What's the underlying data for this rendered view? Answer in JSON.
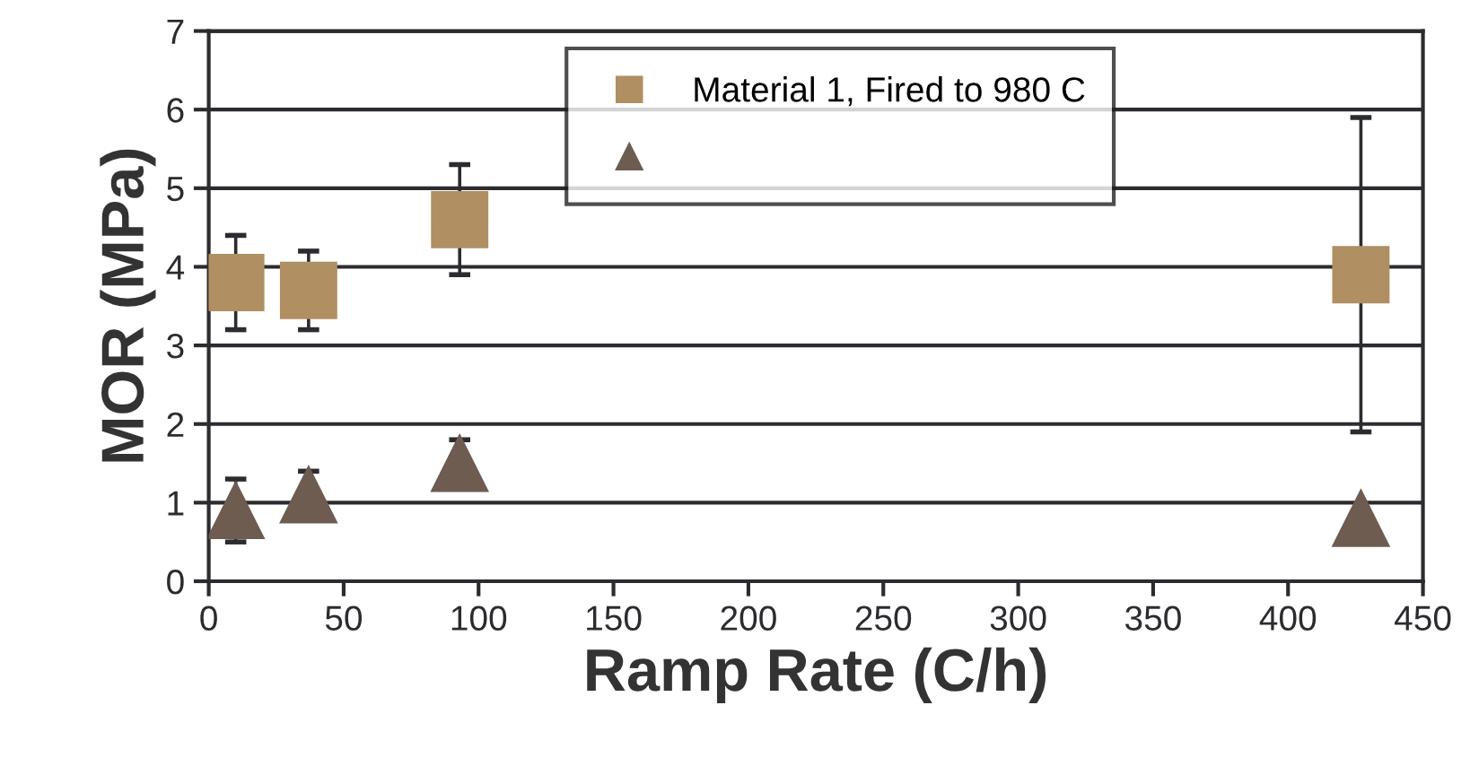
{
  "chart_data": {
    "type": "scatter",
    "xlabel": "Ramp Rate (C/h)",
    "ylabel": "MOR (MPa)",
    "xlim": [
      0,
      450
    ],
    "xticks": [
      0,
      50,
      100,
      150,
      200,
      250,
      300,
      350,
      400,
      450
    ],
    "ylim": [
      0,
      7
    ],
    "yticks": [
      0,
      1,
      2,
      3,
      4,
      5,
      6,
      7
    ],
    "grid": "y",
    "legend": "top",
    "series": [
      {
        "name": "Material 1, Fired to 980 C",
        "color": "#b08f62",
        "marker": "square",
        "x": [
          10,
          37,
          93,
          427
        ],
        "values": [
          3.8,
          3.7,
          4.6,
          3.9
        ],
        "errors": [
          [
            3.2,
            4.4
          ],
          [
            3.2,
            4.2
          ],
          [
            3.9,
            5.3
          ],
          [
            1.9,
            5.9
          ]
        ]
      },
      {
        "color": "#6e5c50",
        "marker": "triangle",
        "x": [
          10,
          37,
          93,
          427
        ],
        "values": [
          0.9,
          1.1,
          1.5,
          0.8
        ],
        "errors": [
          0.4,
          0.3,
          0.3,
          null
        ]
      }
    ]
  }
}
